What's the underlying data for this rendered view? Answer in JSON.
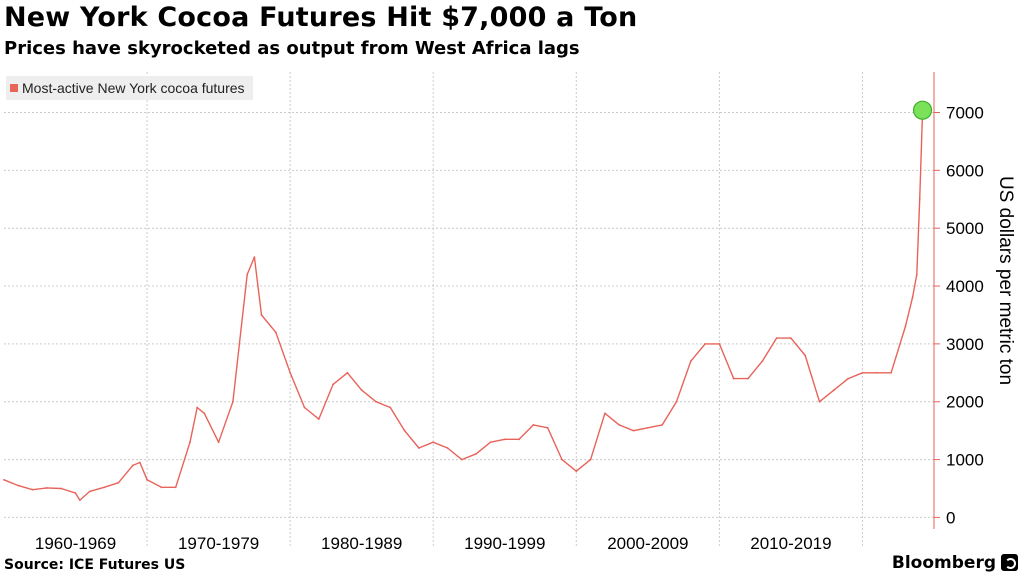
{
  "header": {
    "title": "New York Cocoa Futures Hit $7,000 a Ton",
    "subtitle": "Prices have skyrocketed as output from West Africa lags"
  },
  "footer": {
    "source": "Source: ICE Futures US",
    "brand": "Bloomberg"
  },
  "colors": {
    "series": "#e8635a",
    "highlight_fill": "#7be05a",
    "highlight_stroke": "#3cb028",
    "grid": "#cccccc",
    "axis": "#e8635a"
  },
  "chart_data": {
    "type": "line",
    "ylabel": "US dollars per metric ton",
    "ylim": [
      -200,
      7700
    ],
    "y_ticks": [
      0,
      1000,
      2000,
      3000,
      4000,
      5000,
      6000,
      7000
    ],
    "x_categories": [
      "1960-1969",
      "1970-1979",
      "1980-1989",
      "1990-1999",
      "2000-2009",
      "2010-2019"
    ],
    "grid": "on",
    "legend_position": "top-left",
    "highlight": {
      "x": 2024.2,
      "y": 7040
    },
    "series": [
      {
        "name": "Most-active New York cocoa futures",
        "points": [
          [
            1960.0,
            650
          ],
          [
            1961.0,
            550
          ],
          [
            1962.0,
            480
          ],
          [
            1963.0,
            510
          ],
          [
            1964.0,
            500
          ],
          [
            1965.0,
            420
          ],
          [
            1965.3,
            300
          ],
          [
            1966.0,
            450
          ],
          [
            1967.0,
            520
          ],
          [
            1968.0,
            600
          ],
          [
            1969.0,
            900
          ],
          [
            1969.5,
            950
          ],
          [
            1970.0,
            650
          ],
          [
            1971.0,
            520
          ],
          [
            1972.0,
            520
          ],
          [
            1973.0,
            1300
          ],
          [
            1973.5,
            1900
          ],
          [
            1974.0,
            1800
          ],
          [
            1975.0,
            1300
          ],
          [
            1976.0,
            2000
          ],
          [
            1977.0,
            4200
          ],
          [
            1977.5,
            4500
          ],
          [
            1978.0,
            3500
          ],
          [
            1979.0,
            3200
          ],
          [
            1980.0,
            2500
          ],
          [
            1981.0,
            1900
          ],
          [
            1982.0,
            1700
          ],
          [
            1983.0,
            2300
          ],
          [
            1984.0,
            2500
          ],
          [
            1985.0,
            2200
          ],
          [
            1986.0,
            2000
          ],
          [
            1987.0,
            1900
          ],
          [
            1988.0,
            1500
          ],
          [
            1989.0,
            1200
          ],
          [
            1990.0,
            1300
          ],
          [
            1991.0,
            1200
          ],
          [
            1992.0,
            1000
          ],
          [
            1993.0,
            1100
          ],
          [
            1994.0,
            1300
          ],
          [
            1995.0,
            1350
          ],
          [
            1996.0,
            1350
          ],
          [
            1997.0,
            1600
          ],
          [
            1998.0,
            1550
          ],
          [
            1999.0,
            1000
          ],
          [
            2000.0,
            800
          ],
          [
            2001.0,
            1000
          ],
          [
            2002.0,
            1800
          ],
          [
            2003.0,
            1600
          ],
          [
            2004.0,
            1500
          ],
          [
            2005.0,
            1550
          ],
          [
            2006.0,
            1600
          ],
          [
            2007.0,
            2000
          ],
          [
            2008.0,
            2700
          ],
          [
            2009.0,
            3000
          ],
          [
            2010.0,
            3000
          ],
          [
            2011.0,
            2400
          ],
          [
            2012.0,
            2400
          ],
          [
            2013.0,
            2700
          ],
          [
            2014.0,
            3100
          ],
          [
            2015.0,
            3100
          ],
          [
            2016.0,
            2800
          ],
          [
            2017.0,
            2000
          ],
          [
            2018.0,
            2200
          ],
          [
            2019.0,
            2400
          ],
          [
            2020.0,
            2500
          ],
          [
            2021.0,
            2500
          ],
          [
            2022.0,
            2500
          ],
          [
            2023.0,
            3300
          ],
          [
            2023.5,
            3800
          ],
          [
            2023.8,
            4200
          ],
          [
            2024.0,
            5500
          ],
          [
            2024.2,
            7040
          ]
        ]
      }
    ]
  }
}
